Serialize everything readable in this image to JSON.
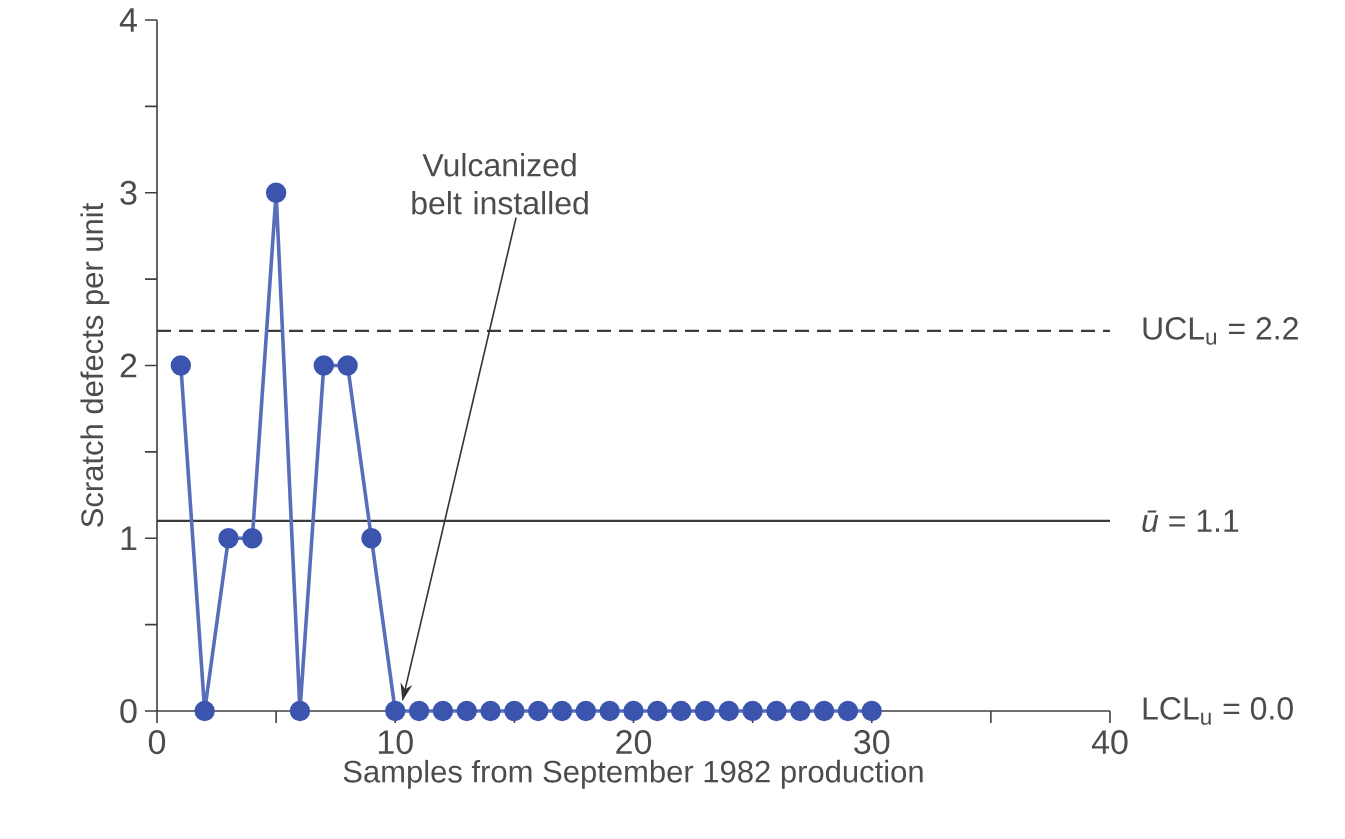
{
  "chart_data": {
    "type": "line",
    "xlabel": "Samples from September 1982 production",
    "ylabel": "Scratch defects per unit",
    "x": [
      1,
      2,
      3,
      4,
      5,
      6,
      7,
      8,
      9,
      10,
      11,
      12,
      13,
      14,
      15,
      16,
      17,
      18,
      19,
      20,
      21,
      22,
      23,
      24,
      25,
      26,
      27,
      28,
      29,
      30
    ],
    "series": [
      {
        "color": "#3b55ae",
        "values": [
          2,
          0,
          1,
          1,
          3,
          0,
          2,
          2,
          1,
          0,
          0,
          0,
          0,
          0,
          0,
          0,
          0,
          0,
          0,
          0,
          0,
          0,
          0,
          0,
          0,
          0,
          0,
          0,
          0,
          0
        ]
      }
    ],
    "marker": "circle",
    "xlim": [
      0,
      40
    ],
    "xticks": [
      0,
      {
        "value": 5,
        "label": null
      },
      10,
      {
        "value": 15,
        "label": null
      },
      20,
      {
        "value": 25,
        "label": null
      },
      30,
      {
        "value": 35,
        "label": null
      },
      40
    ],
    "ylim": [
      0,
      4
    ],
    "yticks": [
      0,
      {
        "value": 0.5,
        "label": null
      },
      1,
      {
        "value": 1.5,
        "label": null
      },
      2,
      {
        "value": 2.5,
        "label": null
      },
      3,
      {
        "value": 3.5,
        "label": null
      },
      4
    ],
    "ref_lines": [
      {
        "axis": "y",
        "value": 2.2,
        "label": "UCL$_{u}$ = 2.2",
        "color": "#3a3a3a",
        "line_style": "dashed"
      },
      {
        "axis": "y",
        "value": 1.1,
        "label": "*ū* = 1.1",
        "color": "#3a3a3a",
        "line_style": "solid"
      }
    ],
    "annotations": [
      "Vulcanized belt installed",
      "LCL$_{u}$ = 0.0"
    ]
  }
}
